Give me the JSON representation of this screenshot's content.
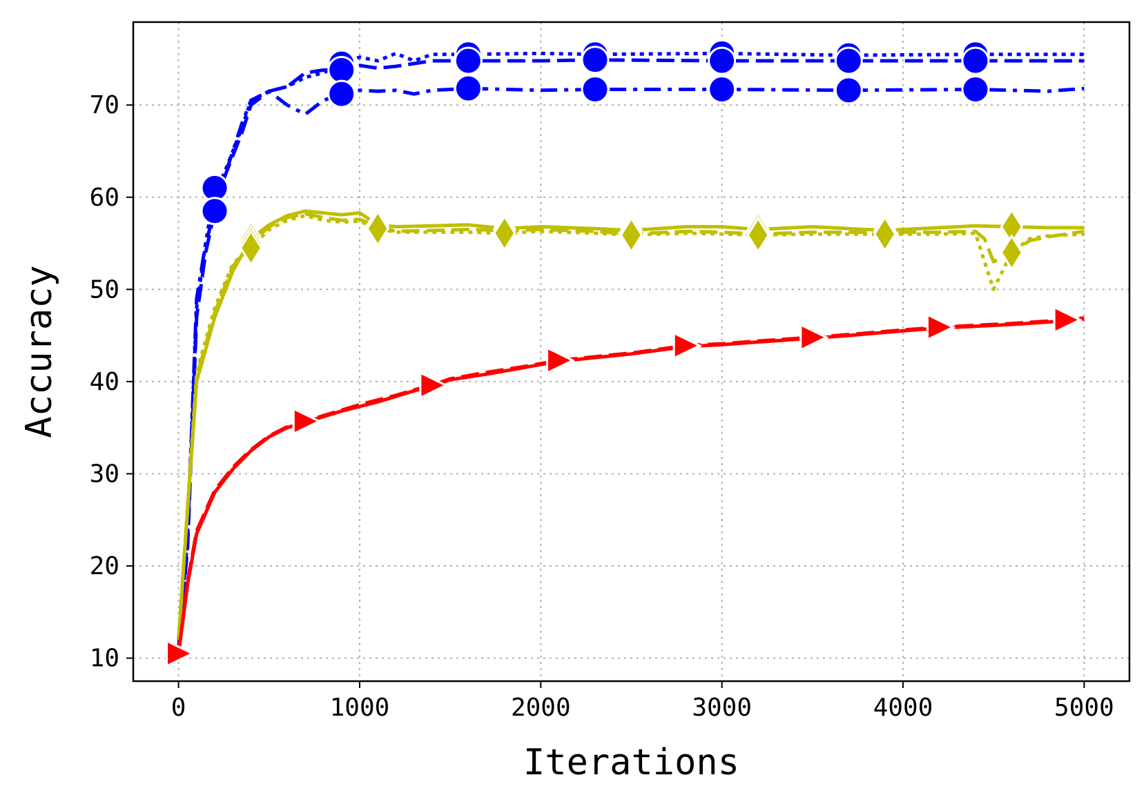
{
  "chart_data": {
    "type": "line",
    "xlabel": "Iterations",
    "ylabel": "Accuracy",
    "xlim": [
      -250,
      5250
    ],
    "ylim": [
      7.5,
      79
    ],
    "xticks": [
      0,
      1000,
      2000,
      3000,
      4000,
      5000
    ],
    "yticks": [
      10,
      20,
      30,
      40,
      50,
      60,
      70
    ],
    "grid": true,
    "legend": "none",
    "series": [
      {
        "color": "#0000ff",
        "line_style": "dotted",
        "marker": "circle",
        "markers_at": [
          200,
          900,
          1600,
          2300,
          3000,
          3700,
          4400
        ],
        "points": [
          [
            0,
            11
          ],
          [
            50,
            24
          ],
          [
            100,
            48
          ],
          [
            150,
            55
          ],
          [
            200,
            61
          ],
          [
            250,
            62.5
          ],
          [
            300,
            65
          ],
          [
            350,
            67.5
          ],
          [
            400,
            70.5
          ],
          [
            500,
            71.5
          ],
          [
            600,
            72
          ],
          [
            700,
            73
          ],
          [
            800,
            73.5
          ],
          [
            900,
            74.5
          ],
          [
            1000,
            75.2
          ],
          [
            1100,
            74.8
          ],
          [
            1200,
            75.6
          ],
          [
            1300,
            74.8
          ],
          [
            1400,
            75.5
          ],
          [
            1600,
            75.5
          ],
          [
            2000,
            75.6
          ],
          [
            2300,
            75.5
          ],
          [
            3000,
            75.6
          ],
          [
            3700,
            75.4
          ],
          [
            4400,
            75.5
          ],
          [
            5000,
            75.5
          ]
        ]
      },
      {
        "color": "#0000ff",
        "line_style": "dashed",
        "marker": "circle",
        "markers_at": [
          200,
          900,
          1600,
          2300,
          3000,
          3700,
          4400
        ],
        "points": [
          [
            0,
            11
          ],
          [
            50,
            22
          ],
          [
            100,
            47
          ],
          [
            150,
            54
          ],
          [
            200,
            58.5
          ],
          [
            250,
            62
          ],
          [
            300,
            64.5
          ],
          [
            350,
            67
          ],
          [
            400,
            70
          ],
          [
            500,
            71.5
          ],
          [
            600,
            72
          ],
          [
            700,
            73.5
          ],
          [
            800,
            73.8
          ],
          [
            900,
            73.8
          ],
          [
            1000,
            74.3
          ],
          [
            1100,
            74
          ],
          [
            1200,
            74.2
          ],
          [
            1300,
            74.5
          ],
          [
            1400,
            74.8
          ],
          [
            1600,
            74.8
          ],
          [
            2000,
            74.8
          ],
          [
            2300,
            74.9
          ],
          [
            3000,
            74.8
          ],
          [
            3700,
            74.8
          ],
          [
            4400,
            74.8
          ],
          [
            5000,
            74.8
          ]
        ]
      },
      {
        "color": "#0000ff",
        "line_style": "dashdot",
        "marker": "circle",
        "markers_at": [
          200,
          900,
          1600,
          2300,
          3000,
          3700,
          4400
        ],
        "points": [
          [
            0,
            11
          ],
          [
            50,
            23
          ],
          [
            100,
            49
          ],
          [
            150,
            55
          ],
          [
            200,
            58.5
          ],
          [
            250,
            62
          ],
          [
            300,
            65
          ],
          [
            350,
            68
          ],
          [
            400,
            70.5
          ],
          [
            500,
            71.5
          ],
          [
            600,
            70
          ],
          [
            700,
            69
          ],
          [
            800,
            70.5
          ],
          [
            900,
            71.2
          ],
          [
            1000,
            71.6
          ],
          [
            1100,
            71.5
          ],
          [
            1200,
            71.6
          ],
          [
            1300,
            71.2
          ],
          [
            1400,
            71.6
          ],
          [
            1600,
            71.8
          ],
          [
            2000,
            71.6
          ],
          [
            2300,
            71.7
          ],
          [
            3000,
            71.7
          ],
          [
            3700,
            71.6
          ],
          [
            4400,
            71.7
          ],
          [
            4800,
            71.5
          ],
          [
            5000,
            71.8
          ]
        ]
      },
      {
        "color": "#bfbf00",
        "line_style": "solid",
        "marker": "diamond",
        "markers_at": [
          400,
          1100,
          1800,
          2500,
          3200,
          3900,
          4600
        ],
        "points": [
          [
            0,
            12
          ],
          [
            100,
            40
          ],
          [
            200,
            47
          ],
          [
            300,
            52
          ],
          [
            400,
            55.5
          ],
          [
            500,
            57
          ],
          [
            600,
            58
          ],
          [
            700,
            58.5
          ],
          [
            800,
            58.3
          ],
          [
            900,
            58.1
          ],
          [
            1000,
            58.3
          ],
          [
            1100,
            57
          ],
          [
            1200,
            56.8
          ],
          [
            1400,
            56.9
          ],
          [
            1600,
            57
          ],
          [
            1800,
            56.6
          ],
          [
            2000,
            56.8
          ],
          [
            2300,
            56.6
          ],
          [
            2500,
            56.4
          ],
          [
            2800,
            56.8
          ],
          [
            3000,
            56.8
          ],
          [
            3200,
            56.5
          ],
          [
            3500,
            56.8
          ],
          [
            3900,
            56.4
          ],
          [
            4200,
            56.7
          ],
          [
            4400,
            56.9
          ],
          [
            4600,
            56.8
          ],
          [
            4800,
            56.7
          ],
          [
            5000,
            56.7
          ]
        ]
      },
      {
        "color": "#bfbf00",
        "line_style": "dashed",
        "marker": "diamond",
        "markers_at": [
          400,
          1100,
          1800,
          2500,
          3200,
          3900,
          4600
        ],
        "points": [
          [
            0,
            12
          ],
          [
            100,
            40.5
          ],
          [
            200,
            47.5
          ],
          [
            300,
            52.5
          ],
          [
            400,
            55
          ],
          [
            500,
            56.8
          ],
          [
            600,
            57.8
          ],
          [
            700,
            58.2
          ],
          [
            800,
            57.8
          ],
          [
            900,
            57.5
          ],
          [
            1000,
            57.6
          ],
          [
            1100,
            56.8
          ],
          [
            1200,
            56.3
          ],
          [
            1400,
            56.4
          ],
          [
            1600,
            56.5
          ],
          [
            1800,
            56.4
          ],
          [
            2000,
            56.5
          ],
          [
            2300,
            56.3
          ],
          [
            2500,
            56
          ],
          [
            2800,
            56.3
          ],
          [
            3000,
            56.2
          ],
          [
            3200,
            56
          ],
          [
            3500,
            56.2
          ],
          [
            3900,
            56.2
          ],
          [
            4200,
            56.2
          ],
          [
            4400,
            56.3
          ],
          [
            4450,
            55.5
          ],
          [
            4500,
            53
          ],
          [
            4600,
            54
          ],
          [
            4700,
            55.3
          ],
          [
            4800,
            55.7
          ],
          [
            5000,
            56.3
          ]
        ]
      },
      {
        "color": "#bfbf00",
        "line_style": "dotted",
        "marker": "diamond",
        "markers_at": [
          400,
          1100,
          1800,
          2500,
          3200,
          3900,
          4600
        ],
        "points": [
          [
            0,
            12
          ],
          [
            100,
            41
          ],
          [
            200,
            48
          ],
          [
            300,
            52.8
          ],
          [
            400,
            54.5
          ],
          [
            500,
            56.5
          ],
          [
            600,
            57.5
          ],
          [
            700,
            58
          ],
          [
            800,
            57.5
          ],
          [
            900,
            57.3
          ],
          [
            1000,
            57.4
          ],
          [
            1100,
            56.6
          ],
          [
            1200,
            56.2
          ],
          [
            1400,
            56.2
          ],
          [
            1600,
            56.2
          ],
          [
            1800,
            56.1
          ],
          [
            2000,
            56.3
          ],
          [
            2300,
            56.1
          ],
          [
            2500,
            55.9
          ],
          [
            2800,
            56.1
          ],
          [
            3000,
            56
          ],
          [
            3200,
            55.9
          ],
          [
            3500,
            56
          ],
          [
            3900,
            56
          ],
          [
            4200,
            56
          ],
          [
            4400,
            56.1
          ],
          [
            4450,
            53
          ],
          [
            4500,
            50
          ],
          [
            4550,
            52
          ],
          [
            4600,
            54
          ],
          [
            4700,
            55.5
          ],
          [
            4800,
            55.8
          ],
          [
            5000,
            56
          ]
        ]
      },
      {
        "color": "#ff0000",
        "line_style": "solid",
        "marker": "triangle-right",
        "markers_at": [
          0,
          700,
          1400,
          2100,
          2800,
          3500,
          4200,
          4900
        ],
        "points": [
          [
            0,
            10.5
          ],
          [
            50,
            18
          ],
          [
            100,
            23.5
          ],
          [
            200,
            28
          ],
          [
            300,
            30.5
          ],
          [
            400,
            32.5
          ],
          [
            500,
            34
          ],
          [
            600,
            35
          ],
          [
            700,
            35.6
          ],
          [
            800,
            36.2
          ],
          [
            900,
            36.8
          ],
          [
            1000,
            37.3
          ],
          [
            1100,
            37.8
          ],
          [
            1200,
            38.4
          ],
          [
            1300,
            39
          ],
          [
            1400,
            39.5
          ],
          [
            1500,
            40.2
          ],
          [
            1700,
            40.8
          ],
          [
            1900,
            41.5
          ],
          [
            2100,
            42.2
          ],
          [
            2300,
            42.6
          ],
          [
            2500,
            43
          ],
          [
            2800,
            43.8
          ],
          [
            3000,
            44
          ],
          [
            3200,
            44.3
          ],
          [
            3500,
            44.7
          ],
          [
            3700,
            45
          ],
          [
            4000,
            45.5
          ],
          [
            4200,
            45.8
          ],
          [
            4400,
            46
          ],
          [
            4600,
            46.2
          ],
          [
            4900,
            46.6
          ],
          [
            5000,
            46.8
          ]
        ]
      },
      {
        "color": "#ff0000",
        "line_style": "dashed",
        "marker": "triangle-right",
        "markers_at": [
          0,
          700,
          1400,
          2100,
          2800,
          3500,
          4200,
          4900
        ],
        "points": [
          [
            0,
            10.5
          ],
          [
            50,
            18.3
          ],
          [
            100,
            23.8
          ],
          [
            200,
            28.2
          ],
          [
            300,
            30.7
          ],
          [
            400,
            32.6
          ],
          [
            500,
            34.1
          ],
          [
            600,
            35.1
          ],
          [
            700,
            35.7
          ],
          [
            800,
            36.3
          ],
          [
            900,
            36.9
          ],
          [
            1000,
            37.5
          ],
          [
            1100,
            38
          ],
          [
            1200,
            38.5
          ],
          [
            1300,
            39.1
          ],
          [
            1400,
            39.6
          ],
          [
            1500,
            40.3
          ],
          [
            1700,
            41
          ],
          [
            1900,
            41.6
          ],
          [
            2100,
            42.3
          ],
          [
            2300,
            42.7
          ],
          [
            2500,
            43.1
          ],
          [
            2800,
            43.9
          ],
          [
            3000,
            44.1
          ],
          [
            3200,
            44.4
          ],
          [
            3500,
            44.8
          ],
          [
            3700,
            45.1
          ],
          [
            4000,
            45.6
          ],
          [
            4200,
            45.9
          ],
          [
            4400,
            46.1
          ],
          [
            4600,
            46.3
          ],
          [
            4900,
            46.7
          ],
          [
            5000,
            46.9
          ]
        ]
      }
    ]
  }
}
